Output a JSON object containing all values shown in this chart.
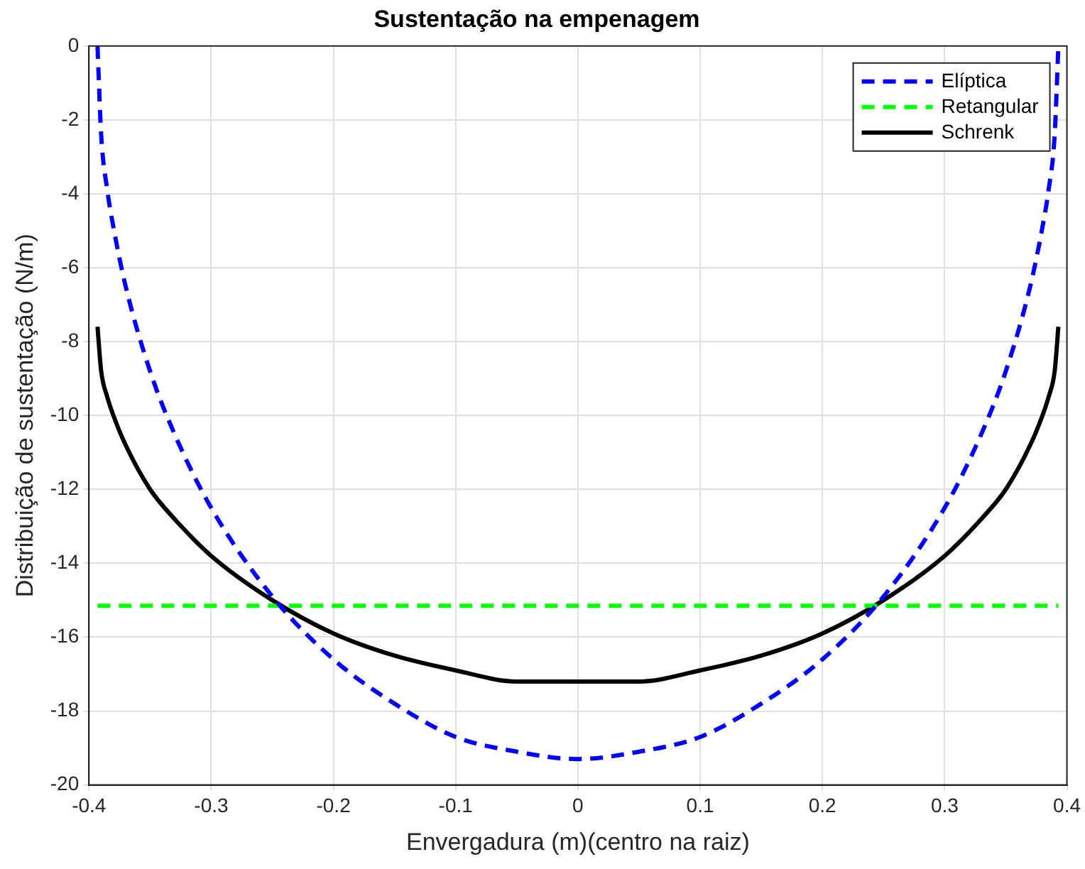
{
  "chart_data": {
    "type": "line",
    "title": "Sustentação na empenagem",
    "xlabel": "Envergadura (m)(centro na raiz)",
    "ylabel": "Distribuição de sustentação (N/m)",
    "xlim": [
      -0.4,
      0.4
    ],
    "xticks": [
      -0.4,
      -0.3,
      -0.2,
      -0.1,
      0,
      0.1,
      0.2,
      0.3,
      0.4
    ],
    "ylim": [
      -20,
      0
    ],
    "yticks": [
      -20,
      -18,
      -16,
      -14,
      -12,
      -10,
      -8,
      -6,
      -4,
      -2,
      0
    ],
    "grid": true,
    "legend": "top right",
    "marker": "none",
    "series": [
      {
        "name": "Elíptica",
        "color": "#0000ff",
        "line_style": "dashed",
        "x": [
          -0.393,
          -0.39,
          -0.385,
          -0.38,
          -0.37,
          -0.35,
          -0.33,
          -0.3,
          -0.25,
          -0.2,
          -0.15,
          -0.1,
          -0.05,
          0,
          0.05,
          0.1,
          0.15,
          0.2,
          0.25,
          0.3,
          0.33,
          0.35,
          0.37,
          0.38,
          0.385,
          0.39,
          0.393
        ],
        "values": [
          0,
          -2.4,
          -3.9,
          -4.9,
          -6.5,
          -8.8,
          -10.5,
          -12.5,
          -14.9,
          -16.6,
          -17.8,
          -18.7,
          -19.1,
          -19.3,
          -19.1,
          -18.7,
          -17.8,
          -16.6,
          -14.9,
          -12.5,
          -10.5,
          -8.8,
          -6.5,
          -4.9,
          -3.9,
          -2.4,
          0
        ]
      },
      {
        "name": "Retangular",
        "color": "#00ff00",
        "line_style": "dashed",
        "x": [
          -0.393,
          0.393
        ],
        "values": [
          -15.15,
          -15.15
        ]
      },
      {
        "name": "Schrenk",
        "color": "#000000",
        "line_style": "solid",
        "x": [
          -0.393,
          -0.39,
          -0.385,
          -0.38,
          -0.37,
          -0.35,
          -0.33,
          -0.3,
          -0.25,
          -0.2,
          -0.15,
          -0.1,
          -0.05,
          0,
          0.05,
          0.1,
          0.15,
          0.2,
          0.25,
          0.3,
          0.33,
          0.35,
          0.37,
          0.38,
          0.385,
          0.39,
          0.393
        ],
        "values": [
          -7.6,
          -8.8,
          -9.5,
          -10.0,
          -10.8,
          -12.0,
          -12.8,
          -13.8,
          -15.0,
          -15.9,
          -16.5,
          -16.9,
          -17.2,
          -17.2,
          -17.2,
          -16.9,
          -16.5,
          -15.9,
          -15.0,
          -13.8,
          -12.8,
          -12.0,
          -10.8,
          -10.0,
          -9.5,
          -8.8,
          -7.6
        ]
      }
    ]
  }
}
